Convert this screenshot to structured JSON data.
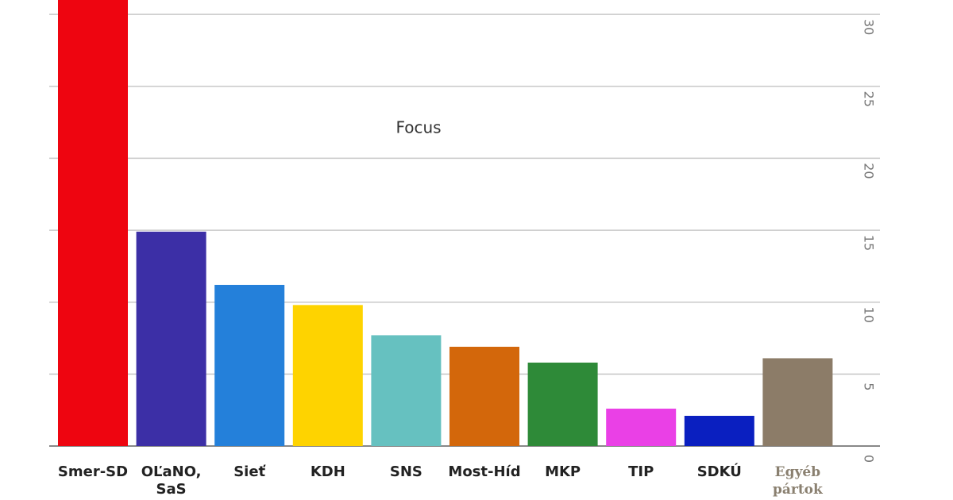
{
  "chart_data": {
    "type": "bar",
    "annotation": "Focus",
    "categories": [
      "Smer-SD",
      "OĽaNO, SaS",
      "Sieť",
      "KDH",
      "SNS",
      "Most-Híd",
      "MKP",
      "TIP",
      "SDKÚ",
      "Egyéb pártok"
    ],
    "values": [
      31,
      14.9,
      11.2,
      9.8,
      7.7,
      6.9,
      5.8,
      2.6,
      2.1,
      6.1
    ],
    "colors": [
      "#ee0510",
      "#3c2fa6",
      "#2480da",
      "#fed300",
      "#66c1c0",
      "#d3670b",
      "#2e8a38",
      "#ea40e6",
      "#0a1fc0",
      "#8c7c68"
    ],
    "ylim": [
      0,
      31
    ],
    "yticks": [
      0,
      5,
      10,
      15,
      20,
      25,
      30
    ],
    "grid": true
  }
}
